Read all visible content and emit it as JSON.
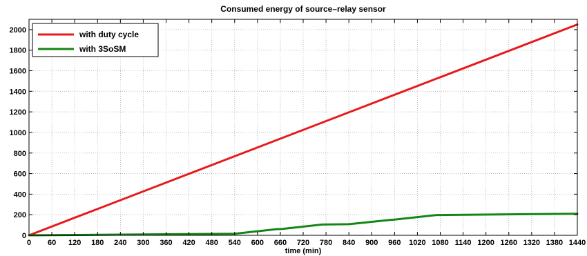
{
  "chart_data": {
    "type": "line",
    "title": "Consumed energy of source–relay sensor",
    "xlabel": "time (min)",
    "ylabel": "",
    "xlim": [
      0,
      1440
    ],
    "ylim": [
      0,
      2100
    ],
    "xticks": [
      0,
      60,
      120,
      180,
      240,
      300,
      360,
      420,
      480,
      540,
      600,
      660,
      720,
      780,
      840,
      900,
      960,
      1020,
      1080,
      1140,
      1200,
      1260,
      1320,
      1380,
      1440
    ],
    "xtick_labels": [
      "0",
      "60",
      "120",
      "180",
      "240",
      "300",
      "360",
      "420",
      "480",
      "540",
      "600",
      "660",
      "720",
      "780",
      "840",
      "900",
      "960",
      "1020",
      "1080",
      "1140",
      "1200",
      "1260",
      "1320",
      "1380",
      "1440"
    ],
    "yticks": [
      0,
      200,
      400,
      600,
      800,
      1000,
      1200,
      1400,
      1600,
      1800,
      2000
    ],
    "ytick_labels": [
      "0",
      "200",
      "400",
      "600",
      "800",
      "1000",
      "1200",
      "1400",
      "1600",
      "1800",
      "2000"
    ],
    "grid": true,
    "legend_position": "top-left",
    "series": [
      {
        "name": "with duty cycle",
        "color": "#e8191a",
        "x": [
          0,
          1440
        ],
        "y": [
          0,
          2050
        ]
      },
      {
        "name": "with 3SoSM",
        "color": "#138613",
        "x": [
          0,
          540,
          650,
          665,
          770,
          840,
          950,
          960,
          1070,
          1440
        ],
        "y": [
          0,
          15,
          60,
          62,
          105,
          108,
          150,
          152,
          197,
          210
        ]
      }
    ]
  }
}
